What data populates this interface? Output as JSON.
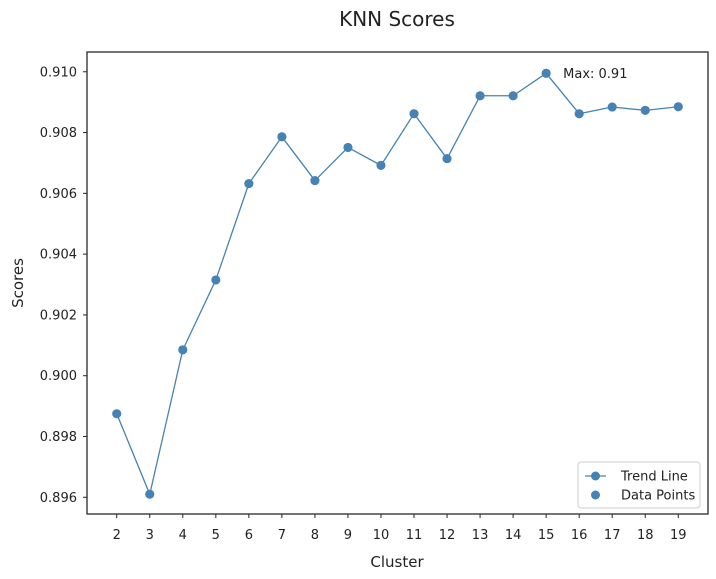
{
  "chart_data": {
    "type": "line",
    "title": "KNN Scores",
    "xlabel": "Cluster",
    "ylabel": "Scores",
    "x": [
      2,
      3,
      4,
      5,
      6,
      7,
      8,
      9,
      10,
      11,
      12,
      13,
      14,
      15,
      16,
      17,
      18,
      19
    ],
    "series": [
      {
        "name": "Trend Line",
        "values": [
          0.89875,
          0.8961,
          0.90085,
          0.90315,
          0.90632,
          0.90786,
          0.90642,
          0.90751,
          0.90692,
          0.90862,
          0.90714,
          0.90921,
          0.90921,
          0.90995,
          0.90862,
          0.90884,
          0.90873,
          0.90885
        ],
        "color": "#4682b4",
        "style": "line-with-markers"
      },
      {
        "name": "Data Points",
        "values": [
          0.89875,
          0.8961,
          0.90085,
          0.90315,
          0.90632,
          0.90786,
          0.90642,
          0.90751,
          0.90692,
          0.90862,
          0.90714,
          0.90921,
          0.90921,
          0.90995,
          0.90862,
          0.90884,
          0.90873,
          0.90885
        ],
        "color": "#4682b4",
        "style": "scatter"
      }
    ],
    "xlim": [
      1.1,
      19.9
    ],
    "ylim": [
      0.89545,
      0.91065
    ],
    "yticks": [
      0.896,
      0.898,
      0.9,
      0.902,
      0.904,
      0.906,
      0.908,
      0.91
    ],
    "ytick_labels": [
      "0.896",
      "0.898",
      "0.900",
      "0.902",
      "0.904",
      "0.906",
      "0.908",
      "0.910"
    ],
    "xticks": [
      2,
      3,
      4,
      5,
      6,
      7,
      8,
      9,
      10,
      11,
      12,
      13,
      14,
      15,
      16,
      17,
      18,
      19
    ],
    "xtick_labels": [
      "2",
      "3",
      "4",
      "5",
      "6",
      "7",
      "8",
      "9",
      "10",
      "11",
      "12",
      "13",
      "14",
      "15",
      "16",
      "17",
      "18",
      "19"
    ],
    "annotation": {
      "text": "Max: 0.91",
      "x": 15,
      "y": 0.90995
    },
    "legend": {
      "placement": "lower-right",
      "entries": [
        "Trend Line",
        "Data Points"
      ]
    },
    "grid": false
  }
}
